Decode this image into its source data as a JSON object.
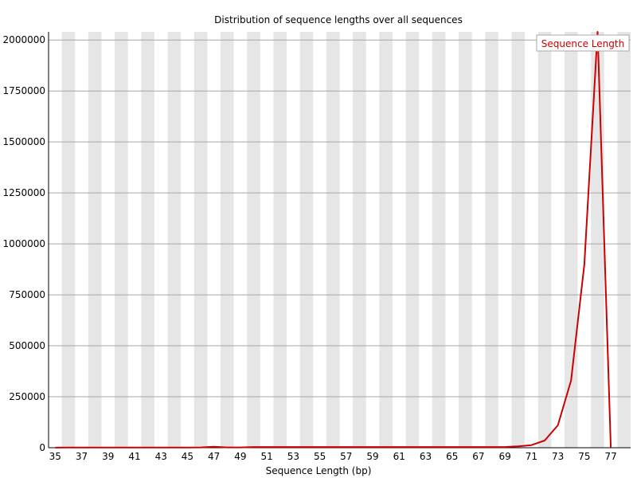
{
  "chart_data": {
    "type": "line",
    "title": "Distribution of sequence lengths over all sequences",
    "xlabel": "Sequence Length (bp)",
    "ylabel": "",
    "x": [
      35,
      36,
      37,
      38,
      39,
      40,
      41,
      42,
      43,
      44,
      45,
      46,
      47,
      48,
      49,
      50,
      51,
      52,
      53,
      54,
      55,
      56,
      57,
      58,
      59,
      60,
      61,
      62,
      63,
      64,
      65,
      66,
      67,
      68,
      69,
      70,
      71,
      72,
      73,
      74,
      75,
      76,
      77
    ],
    "x_ticks": [
      "35",
      "37",
      "39",
      "41",
      "43",
      "45",
      "47",
      "49",
      "51",
      "53",
      "55",
      "57",
      "59",
      "61",
      "63",
      "65",
      "67",
      "69",
      "71",
      "73",
      "75",
      "77"
    ],
    "y_ticks": [
      "0",
      "250000",
      "500000",
      "750000",
      "1000000",
      "1250000",
      "1500000",
      "1750000",
      "2000000"
    ],
    "xlim": [
      34.5,
      78.5
    ],
    "ylim": [
      0,
      2040000
    ],
    "grid": true,
    "legend_position": "top-right",
    "series": [
      {
        "name": "Sequence Length",
        "color": "#cc0000",
        "values": [
          500,
          1200,
          800,
          900,
          700,
          800,
          900,
          1100,
          900,
          800,
          1000,
          1500,
          5000,
          1500,
          1500,
          3500,
          3500,
          3500,
          3500,
          3500,
          3500,
          3500,
          3500,
          3500,
          3500,
          3500,
          3500,
          3500,
          3500,
          3500,
          3500,
          3500,
          3500,
          3500,
          3500,
          7000,
          13000,
          35000,
          110000,
          330000,
          900000,
          2040000,
          0
        ]
      }
    ]
  }
}
